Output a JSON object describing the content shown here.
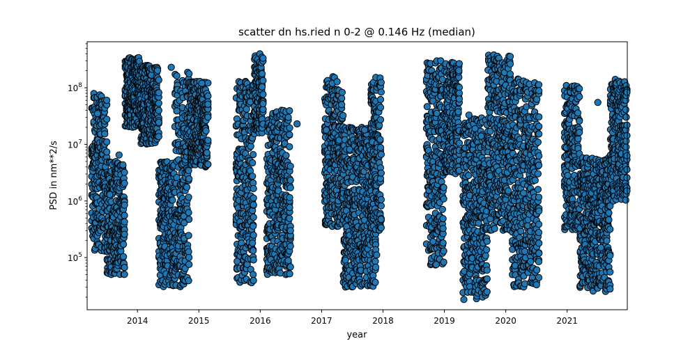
{
  "chart_data": {
    "type": "scatter",
    "title": "scatter dn hs.ried n 0-2 @ 0.146 Hz (median)",
    "xlabel": "year",
    "ylabel": "PSD in nm**2/s",
    "xlim": [
      2013.18,
      2021.98
    ],
    "ylim": [
      12000.0,
      650000000.0
    ],
    "yscale": "log",
    "grid": false,
    "marker_color": "#1f77b4",
    "marker_edge": "#000000",
    "x_ticks": [
      2014,
      2015,
      2016,
      2017,
      2018,
      2019,
      2020,
      2021
    ],
    "x_tick_labels": [
      "2014",
      "2015",
      "2016",
      "2017",
      "2018",
      "2019",
      "2020",
      "2021"
    ],
    "y_ticks": [
      100000,
      1000000,
      10000000,
      100000000
    ],
    "y_tick_labels": [
      {
        "base": "10",
        "exp": "5"
      },
      {
        "base": "10",
        "exp": "6"
      },
      {
        "base": "10",
        "exp": "7"
      },
      {
        "base": "10",
        "exp": "8"
      }
    ],
    "clusters": [
      {
        "x": [
          2013.25,
          2013.5
        ],
        "y": [
          130000.0,
          80000000.0
        ]
      },
      {
        "x": [
          2013.5,
          2013.8
        ],
        "y": [
          50000.0,
          5000000.0
        ]
      },
      {
        "x": [
          2013.8,
          2014.05
        ],
        "y": [
          20000000.0,
          350000000.0
        ]
      },
      {
        "x": [
          2014.05,
          2014.35
        ],
        "y": [
          10000000.0,
          250000000.0
        ]
      },
      {
        "x": [
          2014.35,
          2014.6
        ],
        "y": [
          30000.0,
          5000000.0
        ]
      },
      {
        "x": [
          2014.6,
          2014.85
        ],
        "y": [
          30000.0,
          200000000.0
        ]
      },
      {
        "x": [
          2014.85,
          2015.15
        ],
        "y": [
          4000000.0,
          130000000.0
        ]
      },
      {
        "x": [
          2015.6,
          2015.9
        ],
        "y": [
          35000.0,
          130000000.0
        ]
      },
      {
        "x": [
          2015.9,
          2016.05
        ],
        "y": [
          15000000.0,
          400000000.0
        ]
      },
      {
        "x": [
          2016.1,
          2016.5
        ],
        "y": [
          50000.0,
          40000000.0
        ]
      },
      {
        "x": [
          2017.05,
          2017.35
        ],
        "y": [
          350000.0,
          160000000.0
        ]
      },
      {
        "x": [
          2017.35,
          2017.9
        ],
        "y": [
          30000.0,
          20000000.0
        ]
      },
      {
        "x": [
          2017.8,
          2017.98
        ],
        "y": [
          300000.0,
          160000000.0
        ]
      },
      {
        "x": [
          2018.7,
          2019.0
        ],
        "y": [
          70000.0,
          300000000.0
        ]
      },
      {
        "x": [
          2019.0,
          2019.25
        ],
        "y": [
          3000000.0,
          280000000.0
        ]
      },
      {
        "x": [
          2019.3,
          2019.7
        ],
        "y": [
          18000.0,
          30000000.0
        ]
      },
      {
        "x": [
          2019.7,
          2020.1
        ],
        "y": [
          300000.0,
          380000000.0
        ]
      },
      {
        "x": [
          2020.1,
          2020.55
        ],
        "y": [
          30000.0,
          150000000.0
        ]
      },
      {
        "x": [
          2020.95,
          2021.2
        ],
        "y": [
          300000.0,
          110000000.0
        ]
      },
      {
        "x": [
          2021.2,
          2021.7
        ],
        "y": [
          25000.0,
          6000000.0
        ]
      },
      {
        "x": [
          2021.7,
          2021.98
        ],
        "y": [
          1000000.0,
          150000000.0
        ]
      }
    ],
    "points": [
      [
        2013.35,
        35000000.0
      ],
      [
        2013.7,
        6500000.0
      ],
      [
        2014.55,
        230000000.0
      ],
      [
        2016.6,
        23000000.0
      ],
      [
        2019.4,
        33000000.0
      ],
      [
        2019.5,
        19000000.0
      ],
      [
        2019.6,
        14000000.0
      ],
      [
        2021.5,
        55000000.0
      ],
      [
        2021.55,
        150000.0
      ],
      [
        2017.7,
        18000000.0
      ],
      [
        2015.05,
        120000000.0
      ],
      [
        2013.55,
        1300000.0
      ]
    ]
  }
}
